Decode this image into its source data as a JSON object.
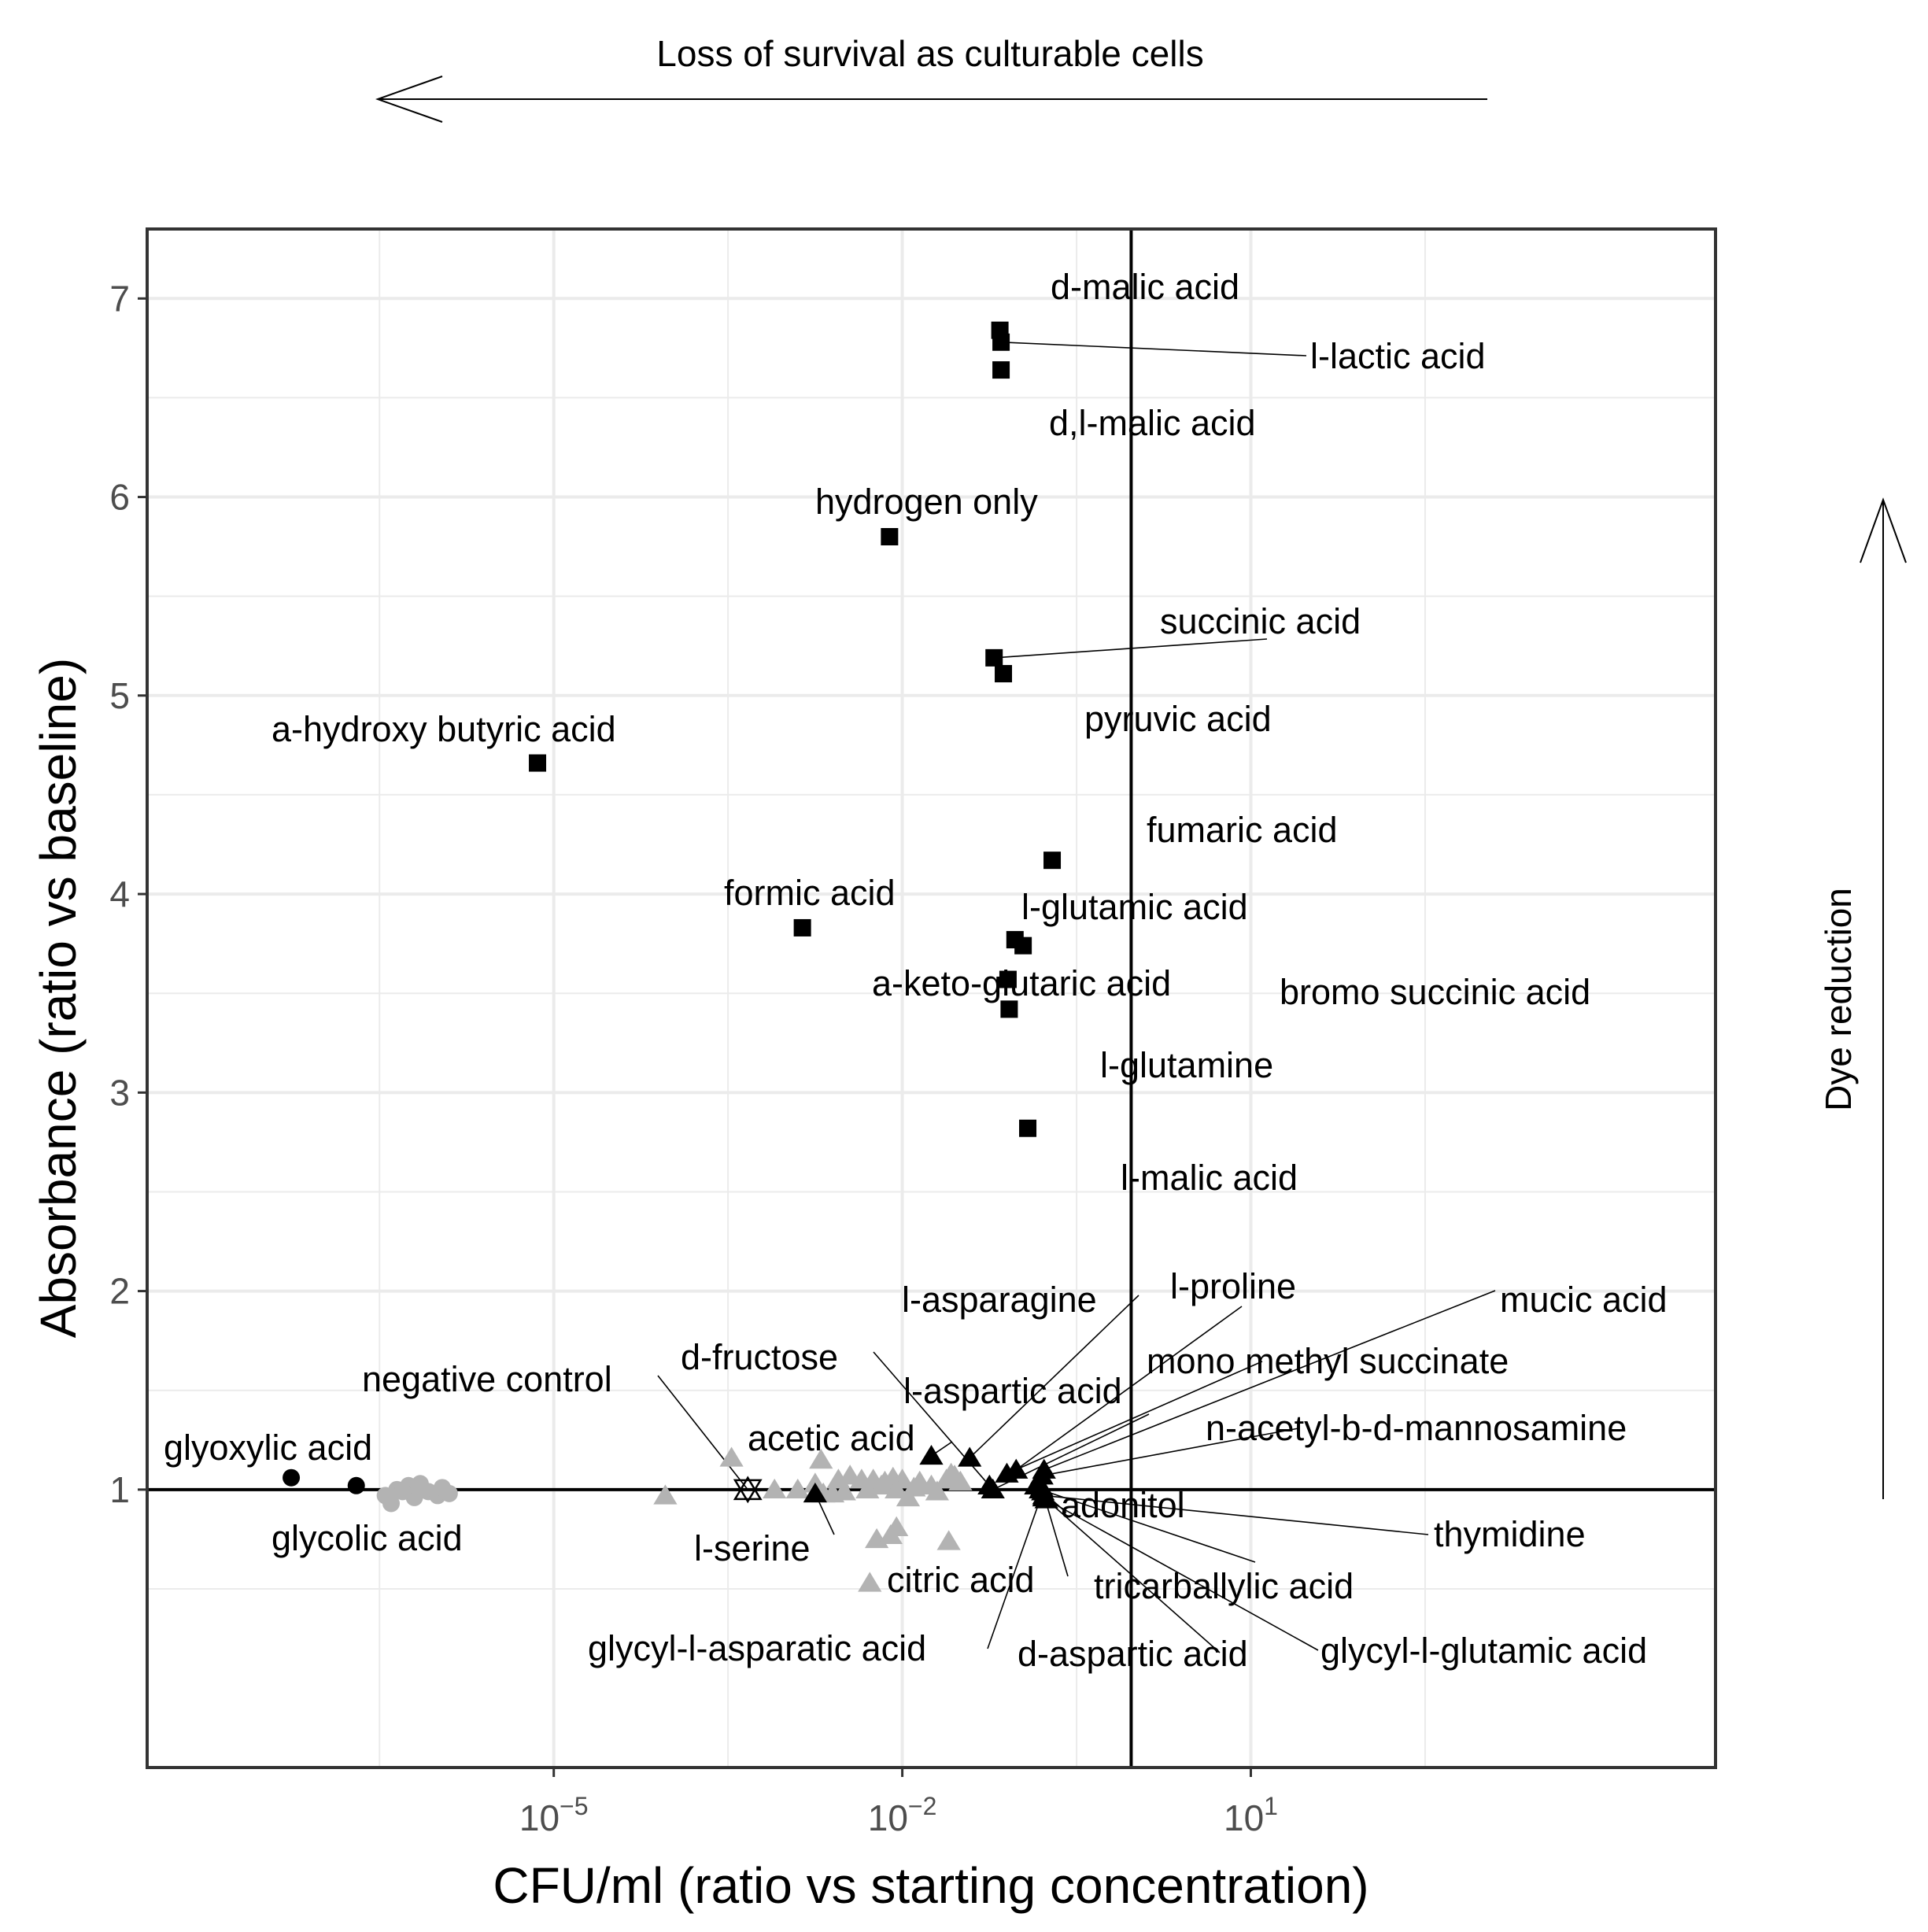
{
  "chart_data": {
    "type": "scatter",
    "title": "",
    "xlabel": "CFU/ml (ratio vs starting concentration)",
    "ylabel": "Absorbance (ratio vs baseline)",
    "x_scale": "log10",
    "xlim_log10": [
      -8.5,
      5.0
    ],
    "ylim": [
      -0.4,
      7.35
    ],
    "x_ticks": [
      {
        "log10": -5,
        "base": "10",
        "exp": "−5"
      },
      {
        "log10": -2,
        "base": "10",
        "exp": "−2"
      },
      {
        "log10": 1,
        "base": "10",
        "exp": "1"
      }
    ],
    "y_ticks": [
      1,
      2,
      3,
      4,
      5,
      6,
      7
    ],
    "y_minor_ticks": [
      0.5,
      1.5,
      2.5,
      3.5,
      4.5,
      5.5,
      6.5
    ],
    "x_minor_ticks_log10": [
      -6.5,
      -3.5,
      -0.5,
      2.5
    ],
    "reference_lines": {
      "vline_log10": -0.03,
      "hline": 1
    },
    "annotations": {
      "top_arrow_text": "Loss of survival as culturable cells",
      "right_arrow_text": "Dye reduction"
    },
    "colors": {
      "black": "#000000",
      "grey": "#b3b3b3",
      "grid": "#ebebeb"
    },
    "labeled_points": [
      {
        "name": "d-malic acid",
        "x_log10": -1.16,
        "y": 6.84,
        "shape": "square"
      },
      {
        "name": "l-lactic acid",
        "x_log10": -1.15,
        "y": 6.78,
        "shape": "square"
      },
      {
        "name": "d,l-malic acid",
        "x_log10": -1.15,
        "y": 6.64,
        "shape": "square"
      },
      {
        "name": "hydrogen only",
        "x_log10": -2.11,
        "y": 5.8,
        "shape": "square"
      },
      {
        "name": "succinic acid",
        "x_log10": -1.21,
        "y": 5.19,
        "shape": "square"
      },
      {
        "name": "pyruvic acid",
        "x_log10": -1.13,
        "y": 5.11,
        "shape": "square"
      },
      {
        "name": "a-hydroxy butyric acid",
        "x_log10": -5.14,
        "y": 4.66,
        "shape": "square"
      },
      {
        "name": "fumaric acid",
        "x_log10": -0.71,
        "y": 4.17,
        "shape": "square"
      },
      {
        "name": "formic acid",
        "x_log10": -2.86,
        "y": 3.83,
        "shape": "square"
      },
      {
        "name": "l-glutamic acid",
        "x_log10": -1.03,
        "y": 3.77,
        "shape": "square"
      },
      {
        "name": "bromo succinic acid",
        "x_log10": -0.96,
        "y": 3.74,
        "shape": "square"
      },
      {
        "name": "a-keto-glutaric acid",
        "x_log10": -1.09,
        "y": 3.57,
        "shape": "square"
      },
      {
        "name": "l-glutamine",
        "x_log10": -1.08,
        "y": 3.42,
        "shape": "square"
      },
      {
        "name": "l-malic acid",
        "x_log10": -0.92,
        "y": 2.82,
        "shape": "square"
      },
      {
        "name": "glyoxylic acid",
        "x_log10": -7.26,
        "y": 1.06,
        "shape": "circle"
      },
      {
        "name": "glycolic acid",
        "x_log10": -6.7,
        "y": 1.02,
        "shape": "circle"
      },
      {
        "name": "negative control",
        "x_log10": -3.33,
        "y": 1.0,
        "shape": "star"
      },
      {
        "name": "acetic acid",
        "x_log10": -1.75,
        "y": 1.17,
        "shape": "triangle"
      },
      {
        "name": "l-serine",
        "x_log10": -2.75,
        "y": 0.98,
        "shape": "triangle"
      },
      {
        "name": "l-asparagine",
        "x_log10": -1.42,
        "y": 1.16,
        "shape": "triangle"
      },
      {
        "name": "l-proline",
        "x_log10": -1.02,
        "y": 1.1,
        "shape": "triangle"
      },
      {
        "name": "mucic acid",
        "x_log10": -0.78,
        "y": 1.1,
        "shape": "triangle"
      },
      {
        "name": "mono methyl succinate",
        "x_log10": -1.1,
        "y": 1.08,
        "shape": "triangle"
      },
      {
        "name": "n-acetyl-b-d-mannosamine",
        "x_log10": -0.8,
        "y": 1.07,
        "shape": "triangle"
      },
      {
        "name": "d-fructose",
        "x_log10": -1.25,
        "y": 1.02,
        "shape": "triangle"
      },
      {
        "name": "l-aspartic acid",
        "x_log10": -1.22,
        "y": 1.0,
        "shape": "triangle"
      },
      {
        "name": "adonitol",
        "x_log10": -0.85,
        "y": 1.02,
        "shape": "triangle"
      },
      {
        "name": "thymidine",
        "x_log10": -0.78,
        "y": 0.97,
        "shape": "triangle"
      },
      {
        "name": "citric acid",
        "x_log10": -0.8,
        "y": 1.01,
        "shape": "triangle"
      },
      {
        "name": "tricarballylic acid",
        "x_log10": -0.81,
        "y": 1.0,
        "shape": "triangle"
      },
      {
        "name": "glycyl-l-asparatic acid",
        "x_log10": -0.79,
        "y": 0.99,
        "shape": "triangle"
      },
      {
        "name": "d-aspartic acid",
        "x_log10": -0.78,
        "y": 0.96,
        "shape": "triangle"
      },
      {
        "name": "glycyl-l-glutamic acid",
        "x_log10": -0.76,
        "y": 0.95,
        "shape": "triangle"
      }
    ],
    "unlabeled_grey_circles": [
      [
        -6.45,
        0.97
      ],
      [
        -6.35,
        1.0
      ],
      [
        -6.25,
        1.02
      ],
      [
        -6.2,
        0.96
      ],
      [
        -6.15,
        1.03
      ],
      [
        -6.08,
        0.99
      ],
      [
        -6.0,
        0.97
      ],
      [
        -5.96,
        1.01
      ],
      [
        -5.9,
        0.98
      ],
      [
        -6.4,
        0.93
      ],
      [
        -6.3,
        0.99
      ]
    ],
    "unlabeled_grey_triangles": [
      [
        -4.04,
        0.97
      ],
      [
        -3.47,
        1.16
      ],
      [
        -3.1,
        1.0
      ],
      [
        -2.9,
        1.0
      ],
      [
        -2.7,
        1.15
      ],
      [
        -2.55,
        1.05
      ],
      [
        -2.45,
        1.07
      ],
      [
        -2.35,
        1.05
      ],
      [
        -2.25,
        1.05
      ],
      [
        -2.15,
        1.04
      ],
      [
        -2.08,
        1.06
      ],
      [
        -2.0,
        1.05
      ],
      [
        -1.9,
        1.01
      ],
      [
        -1.75,
        1.02
      ],
      [
        -1.62,
        1.05
      ],
      [
        -1.55,
        1.07
      ],
      [
        -1.5,
        1.04
      ],
      [
        -1.7,
        0.99
      ],
      [
        -2.6,
        0.98
      ],
      [
        -2.3,
        1.0
      ],
      [
        -2.18,
        1.02
      ],
      [
        -2.05,
        1.0
      ],
      [
        -1.95,
        0.96
      ],
      [
        -2.22,
        0.75
      ],
      [
        -2.1,
        0.77
      ],
      [
        -2.05,
        0.81
      ],
      [
        -2.28,
        0.53
      ],
      [
        -1.6,
        0.74
      ],
      [
        -1.58,
        1.08
      ],
      [
        -1.85,
        1.04
      ],
      [
        -2.75,
        1.03
      ],
      [
        -2.68,
        0.98
      ],
      [
        -2.5,
        0.99
      ]
    ]
  }
}
